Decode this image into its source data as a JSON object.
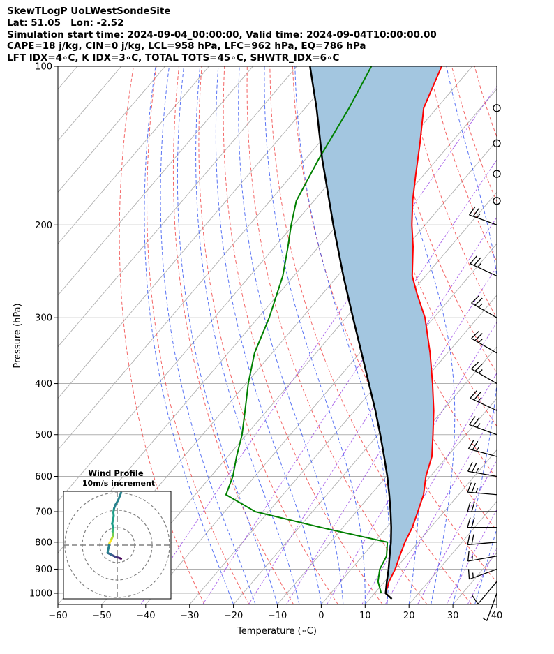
{
  "header": {
    "line1": "SkewTLogP UoLWestSondeSite",
    "line2": "Lat: 51.05   Lon: -2.52",
    "line3": "Simulation start time: 2024-09-04_00:00:00, Valid time: 2024-09-04T10:00:00.00",
    "line4": "CAPE=18 j/kg, CIN=0 j/kg, LCL=958 hPa, LFC=962 hPa, EQ=786 hPa",
    "line5": "LFT IDX=4∘C, K IDX=3∘C, TOTAL TOTS=45∘C, SHWTR_IDX=6∘C"
  },
  "chart_data": [
    {
      "type": "line",
      "subtype": "skew-t log-p",
      "xlabel": "Temperature (∘C)",
      "ylabel": "Pressure (hPa)",
      "xlim": [
        -60,
        40
      ],
      "ylim": [
        1050,
        100
      ],
      "y_scale": "log",
      "x_ticks": [
        "−60",
        "−50",
        "−40",
        "−30",
        "−20",
        "−10",
        "0",
        "10",
        "20",
        "30",
        "40"
      ],
      "y_ticks": [
        "100",
        "200",
        "300",
        "400",
        "500",
        "600",
        "700",
        "800",
        "900",
        "1000"
      ],
      "grid": true,
      "series": [
        {
          "color": "#ff0000",
          "pressure": [
            1000,
            950,
            900,
            850,
            800,
            750,
            700,
            650,
            600,
            550,
            500,
            450,
            400,
            350,
            300,
            270,
            250,
            220,
            200,
            180,
            160,
            140,
            120,
            100
          ],
          "temperature": [
            12.5,
            11.0,
            10.0,
            8.5,
            7.0,
            5.8,
            4.0,
            2.0,
            -1.0,
            -3.5,
            -7.5,
            -12.0,
            -17.5,
            -24.0,
            -32.0,
            -38.5,
            -43.0,
            -48.5,
            -53.0,
            -57.5,
            -62.0,
            -67.0,
            -73.0,
            -77.0
          ]
        },
        {
          "color": "#008000",
          "pressure": [
            1000,
            950,
            900,
            850,
            800,
            750,
            700,
            650,
            600,
            550,
            500,
            450,
            400,
            350,
            300,
            250,
            220,
            200,
            180,
            150,
            120,
            100
          ],
          "temperature": [
            11.5,
            8.5,
            6.5,
            5.5,
            3.0,
            -15.0,
            -33.0,
            -43.0,
            -45.0,
            -48.0,
            -51.0,
            -55.0,
            -59.5,
            -64.0,
            -67.5,
            -72.5,
            -77.0,
            -80.5,
            -84.0,
            -87.0,
            -90.0,
            -93.0
          ]
        },
        {
          "color": "#000000",
          "pressure": [
            1025,
            1000,
            950,
            900,
            850,
            800,
            750,
            700,
            650,
            600,
            550,
            500,
            450,
            400,
            350,
            300,
            250,
            200,
            150,
            120,
            100
          ],
          "temperature": [
            15.0,
            12.5,
            10.5,
            8.5,
            6.2,
            3.8,
            1.0,
            -2.2,
            -5.8,
            -9.8,
            -14.4,
            -19.5,
            -25.3,
            -32.0,
            -39.6,
            -48.4,
            -58.7,
            -70.9,
            -86.2,
            -97.4,
            -107.0
          ]
        }
      ],
      "shading": "#a3c6e0",
      "wind_barbs": {
        "pressure": [
          1000,
          950,
          900,
          850,
          800,
          750,
          700,
          650,
          600,
          550,
          500,
          450,
          400,
          350,
          300,
          250,
          200,
          180,
          160,
          140,
          120
        ],
        "speed_kt": [
          5,
          10,
          15,
          15,
          20,
          20,
          20,
          25,
          25,
          25,
          25,
          25,
          25,
          25,
          25,
          25,
          25,
          0,
          0,
          0,
          0
        ],
        "direction_deg": [
          200,
          220,
          250,
          260,
          265,
          270,
          270,
          275,
          280,
          285,
          290,
          295,
          300,
          300,
          300,
          295,
          290,
          0,
          0,
          0,
          0
        ]
      }
    },
    {
      "type": "line",
      "subtype": "hodograph",
      "title": "Wind Profile",
      "subtitle": "10m/s increment",
      "rings": 3,
      "series": [
        {
          "colormap": "viridis",
          "u": [
            1.0,
            0.5,
            -0.5,
            -1.5,
            -2.5,
            -2.0,
            -1.5,
            -1.0,
            -1.2,
            -1.0,
            -1.3,
            -1.1,
            -0.9,
            -1.0,
            -0.8,
            -0.4,
            0.2,
            0.6,
            1.0
          ],
          "v": [
            -3.5,
            -3.3,
            -3.0,
            -2.5,
            -2.0,
            0.5,
            1.5,
            2.5,
            3.5,
            4.5,
            5.5,
            6.5,
            7.5,
            8.5,
            9.5,
            10.5,
            11.5,
            12.5,
            13.5
          ]
        }
      ]
    }
  ]
}
